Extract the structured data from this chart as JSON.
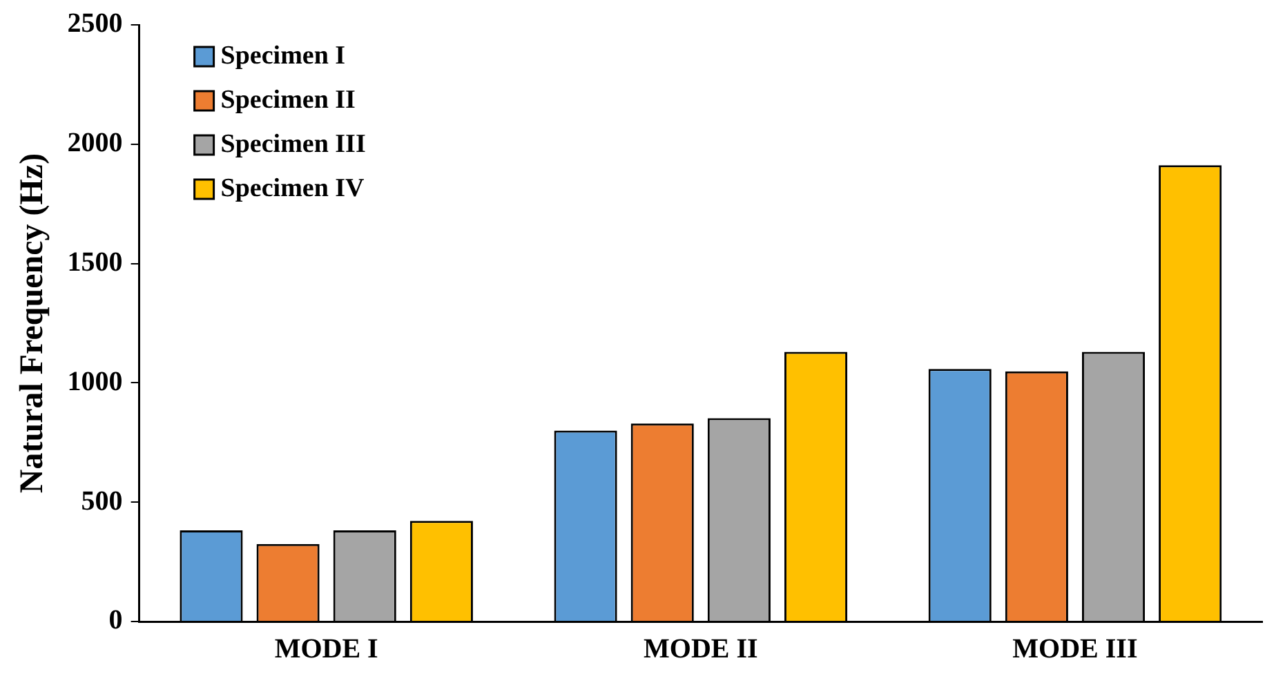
{
  "chart_data": {
    "type": "bar",
    "ylabel": "Natural Frequency (Hz)",
    "categories": [
      "MODE I",
      "MODE II",
      "MODE III"
    ],
    "series": [
      {
        "name": "Specimen I",
        "color": "#5b9bd5",
        "values": [
          382,
          800,
          1058
        ]
      },
      {
        "name": "Specimen II",
        "color": "#ed7d31",
        "values": [
          325,
          830,
          1048
        ]
      },
      {
        "name": "Specimen III",
        "color": "#a5a5a5",
        "values": [
          382,
          852,
          1130
        ]
      },
      {
        "name": "Specimen IV",
        "color": "#ffc000",
        "values": [
          422,
          1130,
          1912
        ]
      }
    ],
    "ylim": [
      0,
      2500
    ],
    "yticks": [
      0,
      500,
      1000,
      1500,
      2000,
      2500
    ],
    "grid": false,
    "legend": "top left"
  }
}
